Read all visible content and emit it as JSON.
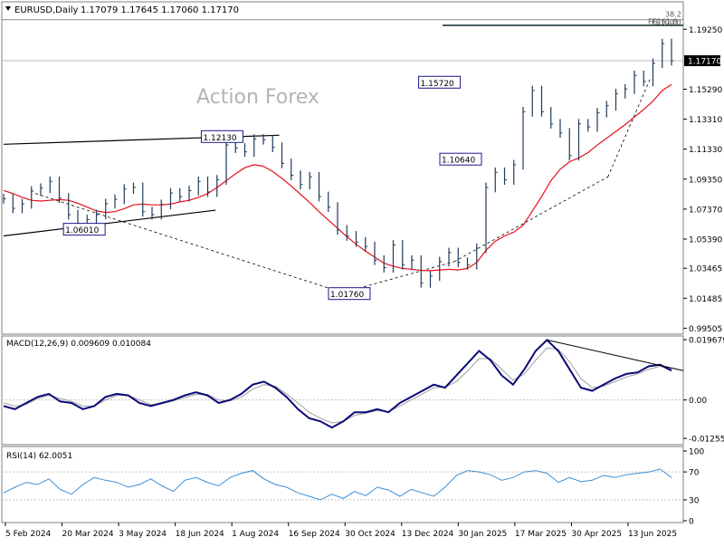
{
  "header": {
    "symbol": "EURUSD,Daily",
    "ohlc": "1.17079 1.17645 1.17060 1.17170"
  },
  "watermark": "Action Forex",
  "colors": {
    "price": "#1f3a5a",
    "ma": "#e8101a",
    "macd": "#0a0a78",
    "signal": "#a0a0a0",
    "rsi": "#3d8fd6",
    "trend": "#000000",
    "fib": "#6a7a78",
    "label_border": "#1a1a8a"
  },
  "chart_data": [
    {
      "type": "line",
      "panel": "price",
      "ylim": [
        0.9923,
        1.2094
      ],
      "price_ticks": [
        "1.19250",
        "1.17170",
        "1.15290",
        "1.13310",
        "1.11330",
        "1.09350",
        "1.07370",
        "1.05390",
        "1.03465",
        "1.01485",
        "0.99505"
      ],
      "current_price": "1.17170",
      "date_ticks": [
        "5 Feb 2024",
        "20 Mar 2024",
        "3 May 2024",
        "18 Jun 2024",
        "1 Aug 2024",
        "16 Sep 2024",
        "30 Oct 2024",
        "13 Dec 2024",
        "30 Jan 2025",
        "17 Mar 2025",
        "30 Apr 2025",
        "13 Jun 2025"
      ],
      "series": [
        {
          "values": [
            1.0805,
            1.0742,
            1.0772,
            1.0856,
            1.0875,
            1.092,
            1.081,
            1.07,
            1.0643,
            1.0668,
            1.0701,
            1.0773,
            1.0802,
            1.087,
            1.088,
            1.072,
            1.07,
            1.0768,
            1.0843,
            1.082,
            1.0859,
            1.092,
            1.085,
            1.093,
            1.116,
            1.114,
            1.1115,
            1.12,
            1.1195,
            1.1145,
            1.1039,
            1.096,
            1.09,
            1.095,
            1.082,
            1.075,
            1.06,
            1.056,
            1.052,
            1.049,
            1.04,
            1.035,
            1.05,
            1.037,
            1.04,
            1.025,
            1.0295,
            1.039,
            1.045,
            1.0385,
            1.037,
            1.0479,
            1.088,
            1.098,
            1.093,
            1.103,
            1.138,
            1.152,
            1.138,
            1.13,
            1.124,
            1.109,
            1.13,
            1.128,
            1.1374,
            1.142,
            1.15,
            1.153,
            1.162,
            1.158,
            1.17,
            1.183,
            1.1717
          ]
        },
        {
          "name": "MA",
          "values": [
            1.086,
            1.084,
            1.0815,
            1.0795,
            1.079,
            1.0795,
            1.08,
            1.0795,
            1.0775,
            1.075,
            1.0725,
            1.0715,
            1.072,
            1.074,
            1.0765,
            1.077,
            1.0765,
            1.0765,
            1.077,
            1.0785,
            1.0795,
            1.0815,
            1.084,
            1.088,
            1.0925,
            1.097,
            1.101,
            1.103,
            1.102,
            1.0985,
            1.094,
            1.089,
            1.0835,
            1.078,
            1.072,
            1.0665,
            1.061,
            1.0555,
            1.0505,
            1.046,
            1.042,
            1.038,
            1.036,
            1.0345,
            1.034,
            1.0332,
            1.033,
            1.0335,
            1.034,
            1.0335,
            1.0345,
            1.0385,
            1.0465,
            1.0525,
            1.056,
            1.0585,
            1.063,
            1.0725,
            1.082,
            1.0925,
            1.1,
            1.105,
            1.1075,
            1.111,
            1.116,
            1.1205,
            1.125,
            1.1295,
            1.1345,
            1.1395,
            1.145,
            1.152,
            1.156
          ]
        }
      ],
      "trend_lines": [
        {
          "from": [
            0,
            1.1165
          ],
          "to": [
            52,
            1.1225
          ]
        },
        {
          "from": [
            0,
            1.056
          ],
          "to": [
            40,
            1.073
          ]
        },
        {
          "from": [
            6,
            1.084
          ],
          "to": [
            64,
            1.0185
          ]
        },
        {
          "from": [
            64,
            1.0185
          ],
          "to": [
            85,
            1.039
          ]
        },
        {
          "from": [
            85,
            1.039
          ],
          "to": [
            114,
            1.095
          ]
        },
        {
          "from": [
            114,
            1.095
          ],
          "to": [
            122,
            1.16
          ]
        }
      ],
      "fib_lines": [
        {
          "label": "38.2",
          "price": 1.1988
        },
        {
          "label": "FE161.8",
          "price": 1.1953
        },
        {
          "label": "FE100.0",
          "price": 1.1948
        }
      ],
      "price_labels": [
        {
          "text": "1.12130",
          "index": 39,
          "price": 1.1213
        },
        {
          "text": "1.06010",
          "index": 13,
          "price": 1.0601
        },
        {
          "text": "1.01760",
          "index": 63,
          "price": 1.0176
        },
        {
          "text": "1.15720",
          "index": 80,
          "price": 1.1572
        },
        {
          "text": "1.10640",
          "index": 84,
          "price": 1.1064
        }
      ]
    },
    {
      "type": "line",
      "panel": "macd",
      "label": "MACD(12,26,9) 0.009609 0.010084",
      "ylim": [
        -0.014,
        0.02
      ],
      "ticks": [
        "0.019679",
        "0.00",
        "-0.012552"
      ],
      "series": [
        {
          "values": [
            -0.002,
            -0.003,
            -0.001,
            0.001,
            0.002,
            -0.0005,
            -0.001,
            -0.003,
            -0.002,
            0.001,
            0.002,
            0.0015,
            -0.001,
            -0.002,
            -0.001,
            0.0,
            0.0015,
            0.0025,
            0.0015,
            -0.001,
            0.0,
            0.002,
            0.005,
            0.006,
            0.004,
            0.001,
            -0.003,
            -0.006,
            -0.007,
            -0.009,
            -0.007,
            -0.004,
            -0.004,
            -0.003,
            -0.004,
            -0.001,
            0.001,
            0.003,
            0.005,
            0.004,
            0.008,
            0.012,
            0.016,
            0.013,
            0.008,
            0.005,
            0.01,
            0.016,
            0.0196,
            0.016,
            0.01,
            0.004,
            0.003,
            0.005,
            0.007,
            0.0085,
            0.009,
            0.011,
            0.0115,
            0.0096
          ]
        },
        {
          "values": [
            -0.001,
            -0.002,
            -0.0015,
            0.0005,
            0.0015,
            0.0005,
            -0.0005,
            -0.002,
            -0.002,
            0.0,
            0.0015,
            0.0015,
            0.0,
            -0.0015,
            -0.0012,
            -0.0003,
            0.0008,
            0.0018,
            0.0018,
            0.0,
            -0.0003,
            0.001,
            0.0035,
            0.005,
            0.0045,
            0.002,
            -0.001,
            -0.004,
            -0.006,
            -0.0075,
            -0.007,
            -0.005,
            -0.0043,
            -0.0035,
            -0.0038,
            -0.002,
            0.0,
            0.002,
            0.004,
            0.0042,
            0.006,
            0.0095,
            0.0135,
            0.0135,
            0.01,
            0.0065,
            0.0085,
            0.013,
            0.017,
            0.0165,
            0.0125,
            0.007,
            0.004,
            0.0045,
            0.006,
            0.0075,
            0.0085,
            0.01,
            0.011,
            0.0101
          ]
        }
      ],
      "trend_line": {
        "from": [
          48,
          0.0196
        ],
        "to": [
          60,
          0.009
        ]
      }
    },
    {
      "type": "line",
      "panel": "rsi",
      "label": "RSI(14) 62.0051",
      "ylim": [
        0,
        100
      ],
      "ticks": [
        "100",
        "70",
        "30",
        "0"
      ],
      "series": [
        {
          "values": [
            40,
            48,
            55,
            52,
            60,
            45,
            38,
            52,
            62,
            58,
            55,
            48,
            52,
            60,
            50,
            42,
            58,
            62,
            55,
            50,
            62,
            68,
            72,
            60,
            52,
            48,
            40,
            35,
            30,
            38,
            32,
            42,
            36,
            48,
            44,
            35,
            45,
            40,
            35,
            48,
            65,
            72,
            70,
            66,
            58,
            62,
            70,
            72,
            68,
            55,
            62,
            56,
            58,
            65,
            62,
            66,
            68,
            70,
            74,
            62
          ]
        }
      ]
    }
  ]
}
